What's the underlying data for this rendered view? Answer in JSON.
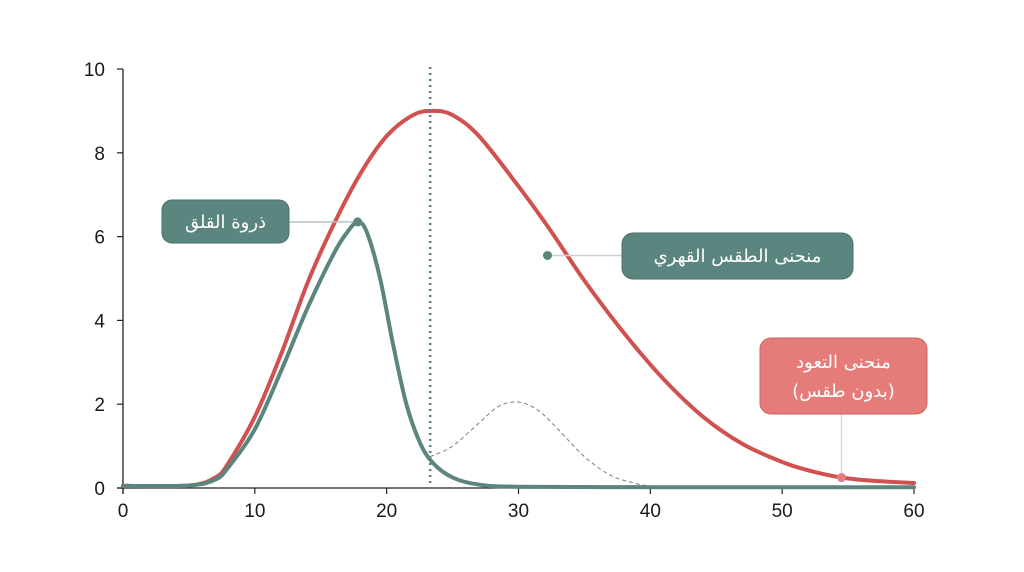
{
  "chart_data": {
    "type": "line",
    "xlim": [
      0,
      60
    ],
    "ylim": [
      0,
      10
    ],
    "x_ticks": [
      0,
      10,
      20,
      30,
      40,
      50,
      60
    ],
    "y_ticks": [
      0,
      2,
      4,
      6,
      8,
      10
    ],
    "grid": false,
    "legend": "none",
    "vertical_marker": {
      "x": 23.3,
      "style": "dotted",
      "color": "#5b857f"
    },
    "series": [
      {
        "name": "منحنى الطقس القهري",
        "color": "#d0514f",
        "style": "solid",
        "points": [
          [
            0,
            0.05
          ],
          [
            5,
            0.06
          ],
          [
            7,
            0.25
          ],
          [
            8,
            0.6
          ],
          [
            10,
            1.7
          ],
          [
            12,
            3.2
          ],
          [
            14,
            4.9
          ],
          [
            16,
            6.3
          ],
          [
            18,
            7.5
          ],
          [
            20,
            8.4
          ],
          [
            22,
            8.9
          ],
          [
            23.5,
            9.0
          ],
          [
            25,
            8.9
          ],
          [
            27,
            8.4
          ],
          [
            30,
            7.2
          ],
          [
            32.2,
            6.25
          ],
          [
            35,
            4.95
          ],
          [
            38,
            3.7
          ],
          [
            41,
            2.6
          ],
          [
            44,
            1.7
          ],
          [
            47,
            1.05
          ],
          [
            50,
            0.62
          ],
          [
            52,
            0.42
          ],
          [
            54.5,
            0.25
          ],
          [
            57,
            0.17
          ],
          [
            60,
            0.12
          ]
        ]
      },
      {
        "name": "ذروة القلق",
        "color": "#5b857f",
        "style": "solid",
        "points": [
          [
            0,
            0.05
          ],
          [
            5,
            0.06
          ],
          [
            7,
            0.2
          ],
          [
            8,
            0.5
          ],
          [
            10,
            1.4
          ],
          [
            12,
            2.8
          ],
          [
            14,
            4.3
          ],
          [
            16,
            5.6
          ],
          [
            17,
            6.1
          ],
          [
            17.8,
            6.35
          ],
          [
            18.5,
            6.1
          ],
          [
            19.5,
            5.0
          ],
          [
            20.5,
            3.4
          ],
          [
            21.5,
            2.0
          ],
          [
            22.5,
            1.1
          ],
          [
            23.5,
            0.6
          ],
          [
            25,
            0.25
          ],
          [
            27,
            0.08
          ],
          [
            30,
            0.03
          ],
          [
            40,
            0.02
          ],
          [
            50,
            0.02
          ],
          [
            60,
            0.02
          ]
        ]
      },
      {
        "name": "منحنى التعود (بدون طقس)",
        "color": "#888888",
        "style": "dashed",
        "points": [
          [
            23.3,
            0.75
          ],
          [
            25,
            1.0
          ],
          [
            27,
            1.55
          ],
          [
            28.5,
            1.95
          ],
          [
            30,
            2.05
          ],
          [
            31.5,
            1.85
          ],
          [
            33,
            1.4
          ],
          [
            35,
            0.75
          ],
          [
            37,
            0.3
          ],
          [
            39,
            0.1
          ],
          [
            40,
            0.05
          ]
        ]
      }
    ],
    "annotations": [
      {
        "id": "anxiety-peak",
        "lines": [
          "ذروة القلق"
        ],
        "color": "#5b857f",
        "anchor": [
          17.8,
          6.35
        ]
      },
      {
        "id": "ritual-curve",
        "lines": [
          "منحنى الطقس القهري"
        ],
        "color": "#5b857f",
        "anchor": [
          32.2,
          5.55
        ]
      },
      {
        "id": "habituation-curve",
        "lines": [
          "منحنى التعود",
          "(بدون طقس)"
        ],
        "color": "#e57c7a",
        "anchor": [
          54.5,
          0.25
        ]
      }
    ]
  }
}
